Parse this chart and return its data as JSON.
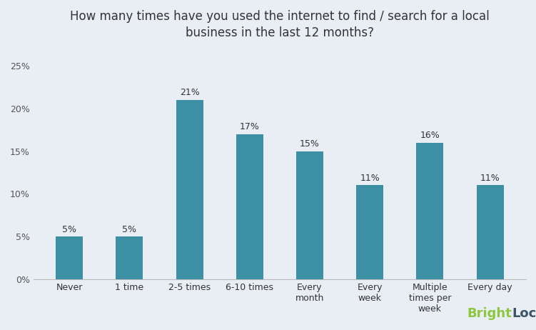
{
  "title": "How many times have you used the internet to find / search for a local\nbusiness in the last 12 months?",
  "categories": [
    "Never",
    "1 time",
    "2-5 times",
    "6-10 times",
    "Every\nmonth",
    "Every\nweek",
    "Multiple\ntimes per\nweek",
    "Every day"
  ],
  "values": [
    5,
    5,
    21,
    17,
    15,
    11,
    16,
    11
  ],
  "bar_color": "#3d8fa3",
  "background_color": "#e8eef4",
  "ylim": [
    0,
    27
  ],
  "yticks": [
    0,
    5,
    10,
    15,
    20,
    25
  ],
  "ytick_labels": [
    "0%",
    "5%",
    "10%",
    "15%",
    "20%",
    "25%"
  ],
  "title_fontsize": 12,
  "tick_fontsize": 9,
  "bar_label_fontsize": 9,
  "brightlocal_bright": "#8dc63f",
  "brightlocal_dark": "#3d5467",
  "logo_fontsize": 13,
  "bar_width": 0.45
}
